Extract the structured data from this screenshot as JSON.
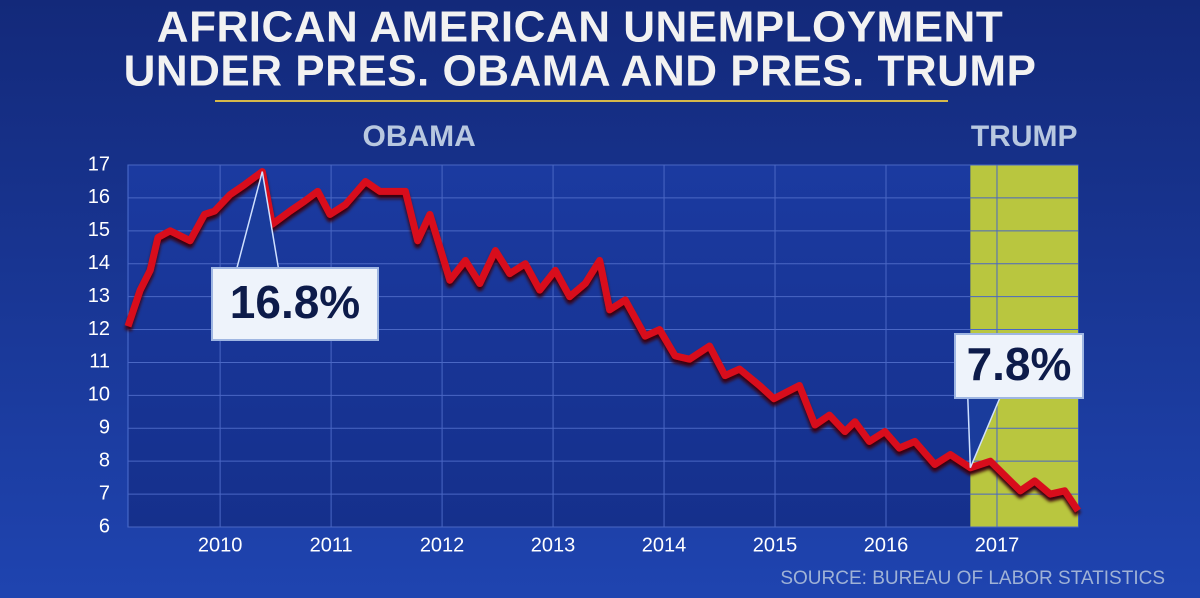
{
  "chart_data": {
    "type": "line",
    "title": [
      "AFRICAN AMERICAN UNEMPLOYMENT",
      "UNDER PRES. OBAMA AND PRES. TRUMP"
    ],
    "source": "SOURCE: BUREAU OF LABOR STATISTICS",
    "periods": [
      {
        "label": "OBAMA"
      },
      {
        "label": "TRUMP",
        "start": 2016.76,
        "color": "#b9c63f"
      }
    ],
    "x": [
      2009.17,
      2009.28,
      2009.37,
      2009.44,
      2009.55,
      2009.73,
      2009.86,
      2009.95,
      2010.09,
      2010.22,
      2010.38,
      2010.47,
      2010.63,
      2010.76,
      2010.88,
      2010.99,
      2011.13,
      2011.31,
      2011.44,
      2011.67,
      2011.78,
      2011.89,
      2012.07,
      2012.21,
      2012.34,
      2012.48,
      2012.61,
      2012.75,
      2012.88,
      2013.02,
      2013.15,
      2013.29,
      2013.42,
      2013.51,
      2013.65,
      2013.83,
      2013.96,
      2014.1,
      2014.23,
      2014.41,
      2014.55,
      2014.68,
      2014.86,
      2014.99,
      2015.22,
      2015.36,
      2015.49,
      2015.63,
      2015.72,
      2015.85,
      2015.99,
      2016.12,
      2016.26,
      2016.44,
      2016.58,
      2016.76,
      2016.94,
      2017.12,
      2017.21,
      2017.34,
      2017.48,
      2017.61,
      2017.73
    ],
    "series": [
      {
        "color": "#d8101c",
        "values": [
          12.1,
          13.2,
          13.8,
          14.8,
          15.0,
          14.7,
          15.5,
          15.6,
          16.1,
          16.4,
          16.8,
          15.2,
          15.6,
          15.9,
          16.2,
          15.5,
          15.8,
          16.5,
          16.2,
          16.2,
          14.7,
          15.5,
          13.5,
          14.1,
          13.4,
          14.4,
          13.7,
          14.0,
          13.2,
          13.8,
          13.0,
          13.4,
          14.1,
          12.6,
          12.9,
          11.8,
          12.0,
          11.2,
          11.1,
          11.5,
          10.6,
          10.8,
          10.3,
          9.9,
          10.3,
          9.1,
          9.4,
          8.9,
          9.2,
          8.6,
          8.9,
          8.4,
          8.6,
          7.9,
          8.2,
          7.8,
          8.0,
          7.4,
          7.1,
          7.4,
          7.0,
          7.1,
          6.5
        ]
      }
    ],
    "annotations": [
      {
        "label": "16.8%",
        "x": 2010.38,
        "y": 16.8
      },
      {
        "label": "7.8%",
        "x": 2016.76,
        "y": 7.8
      }
    ],
    "xlim": [
      2009.17,
      2017.73
    ],
    "xticks": [
      2010,
      2011,
      2012,
      2013,
      2014,
      2015,
      2016,
      2017
    ],
    "ylim": [
      6,
      17
    ],
    "yticks": [
      6,
      7,
      8,
      9,
      10,
      11,
      12,
      13,
      14,
      15,
      16,
      17
    ],
    "grid": true
  }
}
